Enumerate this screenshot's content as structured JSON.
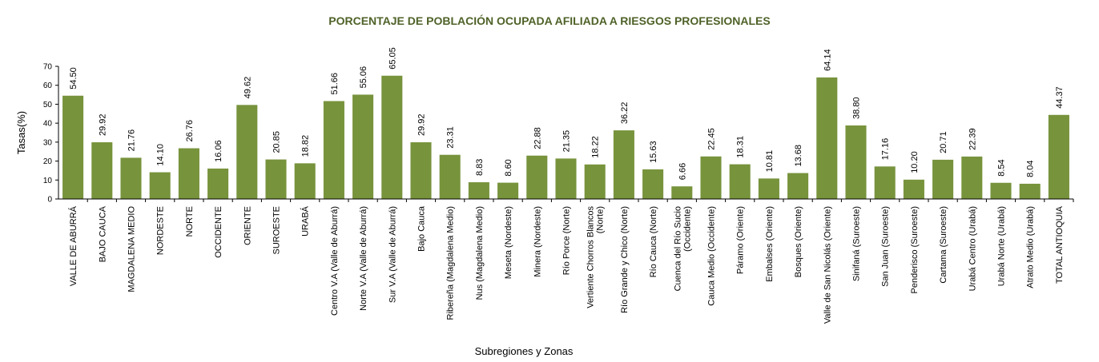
{
  "chart_data": {
    "type": "bar",
    "title": "PORCENTAJE DE POBLACIÓN OCUPADA AFILIADA A RIESGOS PROFESIONALES",
    "xlabel": "Subregiones y Zonas",
    "ylabel": "Tasas(%)",
    "ylim": [
      0,
      70
    ],
    "yticks": [
      0,
      10,
      20,
      30,
      40,
      50,
      60,
      70
    ],
    "bar_color": "#77933c",
    "grid": false,
    "categories": [
      "VALLE DE ABURRÁ",
      "BAJO CAUCA",
      "MAGDALENA MEDIO",
      "NORDESTE",
      "NORTE",
      "OCCIDENTE",
      "ORIENTE",
      "SUROESTE",
      "URABÁ",
      "Centro V.A (Valle de Aburrá)",
      "Norte V.A (Valle de Aburrá)",
      "Sur V.A (Valle de Aburrá)",
      "Bajo Cauca",
      "Ribereña (Magdalena Medio)",
      "Nus (Magdalena Medio)",
      "Meseta (Nordeste)",
      "Minera (Nordeste)",
      "Río Porce (Norte)",
      "Vertiente Chorros Blancos\n(Norte)",
      "Río Grande y Chico (Norte)",
      "Río Cauca (Norte)",
      "Cuenca del Río Sucio\n(Occidente)",
      "Cauca Medio (Occidente)",
      "Páramo (Oriente)",
      "Embalses (Oriente)",
      "Bosques (Oriente)",
      "Valle de San Nicolás (Oriente)",
      "Sinifaná (Suroeste)",
      "San Juan (Suroeste)",
      "Penderisco (Suroeste)",
      "Cartama (Suroeste)",
      "Urabá Centro (Urabá)",
      "Urabá Norte (Urabá)",
      "Atrato Medio (Urabá)",
      "TOTAL ANTIOQUIA"
    ],
    "values": [
      54.5,
      29.92,
      21.76,
      14.1,
      26.76,
      16.06,
      49.62,
      20.85,
      18.82,
      51.66,
      55.06,
      65.05,
      29.92,
      23.31,
      8.83,
      8.6,
      22.88,
      21.35,
      18.22,
      36.22,
      15.63,
      6.66,
      22.45,
      18.31,
      10.81,
      13.68,
      64.14,
      38.8,
      17.16,
      10.2,
      20.71,
      22.39,
      8.54,
      8.04,
      44.37
    ],
    "value_labels": [
      "54.50",
      "29.92",
      "21.76",
      "14.10",
      "26.76",
      "16.06",
      "49.62",
      "20.85",
      "18.82",
      "51.66",
      "55.06",
      "65.05",
      "29.92",
      "23.31",
      "8.83",
      "8.60",
      "22.88",
      "21.35",
      "18.22",
      "36.22",
      "15.63",
      "6.66",
      "22.45",
      "18.31",
      "10.81",
      "13.68",
      "64.14",
      "38.80",
      "17.16",
      "10.20",
      "20.71",
      "22.39",
      "8.54",
      "8.04",
      "44.37"
    ]
  }
}
